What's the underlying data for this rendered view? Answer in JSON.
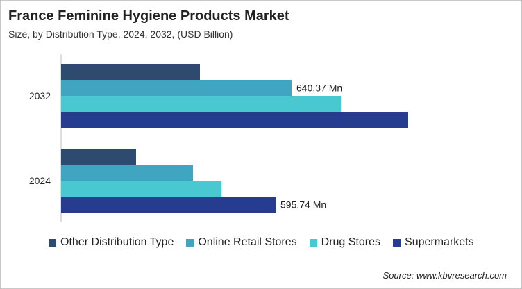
{
  "chart_data": {
    "type": "bar",
    "orientation": "horizontal",
    "title": "France Feminine Hygiene Products Market",
    "subtitle": "Size, by Distribution Type, 2024, 2032, (USD Billion)",
    "categories": [
      "2032",
      "2024"
    ],
    "series": [
      {
        "name": "Other Distribution Type",
        "color": "#2e4a6e",
        "values": [
          200,
          108
        ]
      },
      {
        "name": "Online Retail Stores",
        "color": "#3fa5c0",
        "values": [
          332,
          190
        ]
      },
      {
        "name": "Drug Stores",
        "color": "#4ac8d2",
        "values": [
          403,
          231
        ]
      },
      {
        "name": "Supermarkets",
        "color": "#263c8f",
        "values": [
          500,
          309
        ]
      }
    ],
    "annotations": [
      {
        "category": "2032",
        "series": "Online Retail Stores",
        "text": "640.37 Mn"
      },
      {
        "category": "2024",
        "series": "Supermarkets",
        "text": "595.74 Mn"
      }
    ],
    "xlim": [
      0,
      560
    ],
    "legend_position": "bottom",
    "grid": false,
    "source": "Source: www.kbvresearch.com"
  }
}
